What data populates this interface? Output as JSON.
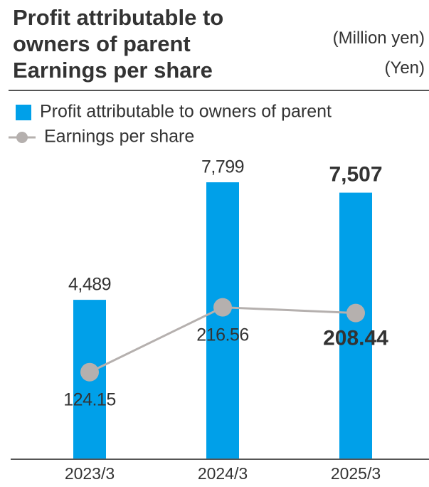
{
  "chart_data": {
    "type": "bar",
    "title": "Profit attributable to owners of parent",
    "subtitle": "Earnings per share",
    "y_unit": "(Million yen)",
    "y2_unit": "(Yen)",
    "categories": [
      "2023/3",
      "2024/3",
      "2025/3"
    ],
    "series": [
      {
        "name": "Profit attributable to owners of parent",
        "type": "bar",
        "color": "#00a0e9",
        "values": [
          4489,
          7799,
          7507
        ],
        "value_labels": [
          "4,489",
          "7,799",
          "7,507"
        ]
      },
      {
        "name": "Earnings per share",
        "type": "line",
        "axis": "y2",
        "color": "#b5b0ae",
        "values": [
          124.15,
          216.56,
          208.44
        ]
      }
    ],
    "ylim": [
      0,
      8000
    ],
    "y2lim": [
      0,
      405
    ],
    "grid": false
  }
}
